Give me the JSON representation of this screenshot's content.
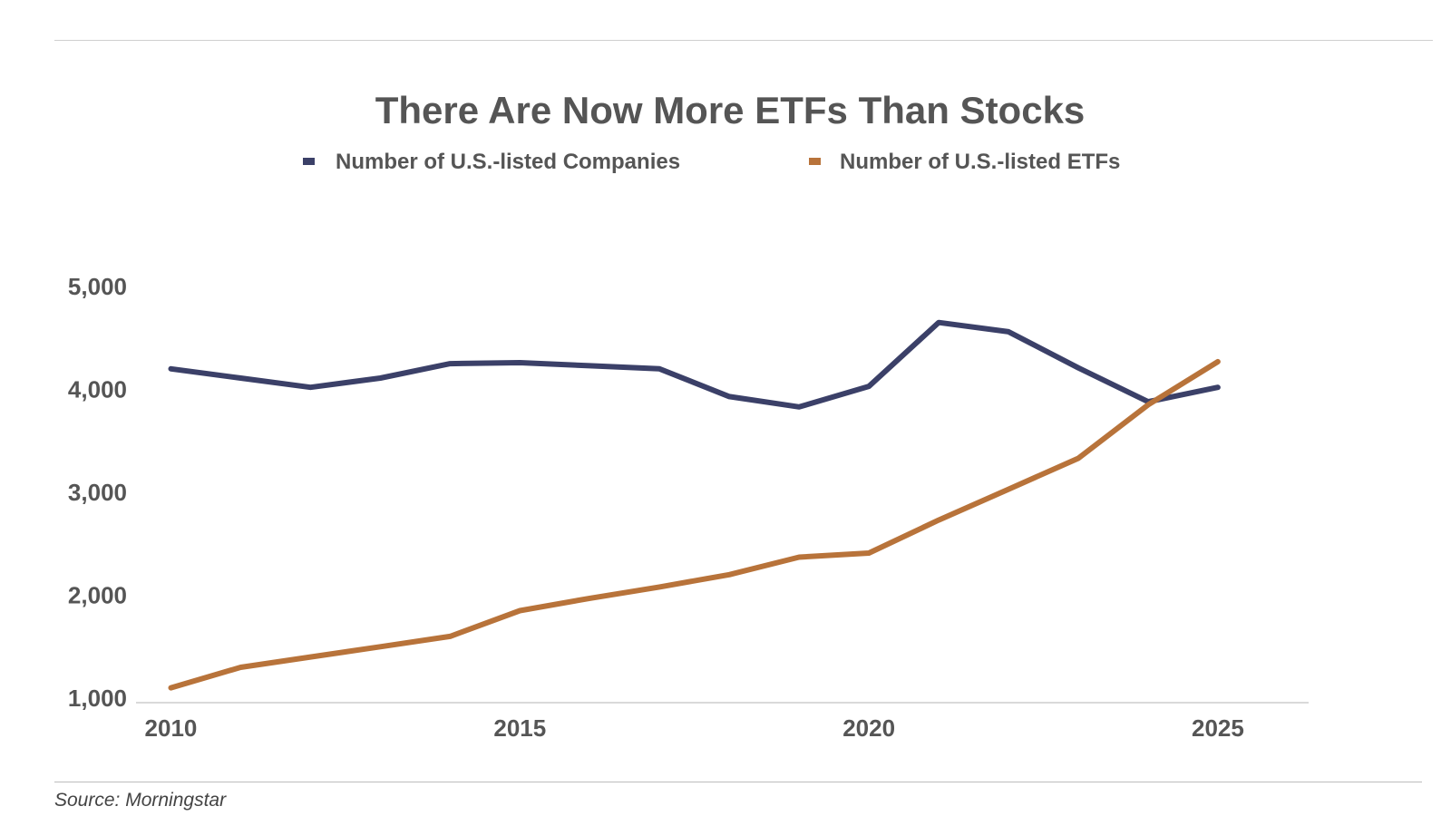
{
  "chart_data": {
    "type": "line",
    "title": "There Are Now More ETFs Than Stocks",
    "source": "Source: Morningstar",
    "xlabel": "",
    "ylabel": "",
    "x": [
      2010,
      2011,
      2012,
      2013,
      2014,
      2015,
      2016,
      2017,
      2018,
      2019,
      2020,
      2021,
      2022,
      2023,
      2024,
      2025
    ],
    "x_ticks": [
      "2010",
      "2015",
      "2020",
      "2025"
    ],
    "x_tick_values": [
      2010,
      2015,
      2020,
      2025
    ],
    "y_ticks": [
      "1,000",
      "2,000",
      "3,000",
      "4,000",
      "5,000"
    ],
    "y_tick_values": [
      1000,
      2000,
      3000,
      4000,
      5000
    ],
    "ylim": [
      1000,
      5000
    ],
    "xlim": [
      2009.5,
      2026.3
    ],
    "grid": false,
    "legend_position": "top-center",
    "series": [
      {
        "name": "Number of U.S.-listed Companies",
        "color": "#3b4068",
        "values": [
          4200,
          4110,
          4020,
          4110,
          4250,
          4260,
          4230,
          4200,
          3930,
          3830,
          4030,
          4650,
          4560,
          4210,
          3880,
          4020
        ]
      },
      {
        "name": "Number of U.S.-listed ETFs",
        "color": "#b8733a",
        "values": [
          1100,
          1300,
          1400,
          1500,
          1600,
          1850,
          1970,
          2080,
          2200,
          2370,
          2410,
          2730,
          3030,
          3330,
          3850,
          4270
        ]
      }
    ]
  }
}
